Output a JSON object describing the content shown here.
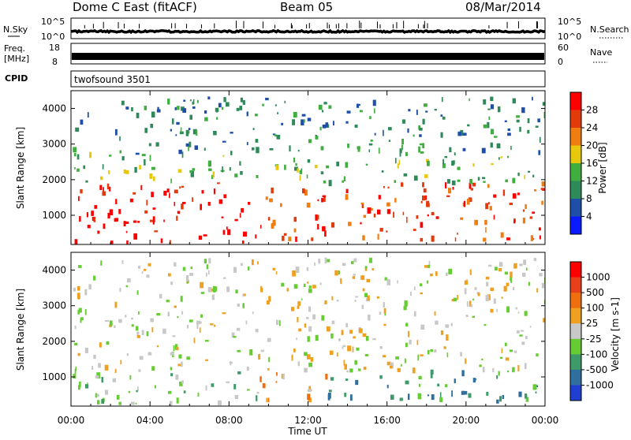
{
  "header": {
    "station": "Dome C East (fitACF)",
    "beam": "Beam 05",
    "date": "08/Mar/2014"
  },
  "noise_panel": {
    "left_label": "N.Sky",
    "right_label": "N.Search",
    "y_ticks_left": [
      "10^5",
      "10^0"
    ],
    "y_ticks_right": [
      "10^5",
      "10^0"
    ],
    "level_log": 0.35
  },
  "freq_panel": {
    "left_label": "Freq.",
    "left_unit": "[MHz]",
    "left_tick_top": "18",
    "left_tick_bottom": "8",
    "right_label": "Nave",
    "right_tick_top": "60",
    "right_tick_bottom": "0",
    "level": 0.55
  },
  "cpid_panel": {
    "label": "CPID",
    "text": "twofsound 3501"
  },
  "chart_data": [
    {
      "type": "heatmap",
      "parameter": "Power",
      "ylabel": "Slant Range [km]",
      "ylim": [
        180,
        4500
      ],
      "y_ticks": [
        1000,
        2000,
        3000,
        4000
      ],
      "xlim": [
        0,
        24
      ],
      "colorbar_label": "Power [dB]",
      "colorbar_ticks": [
        "4",
        "8",
        "12",
        "16",
        "20",
        "24",
        "28"
      ],
      "colorbar_colors": [
        "#0a1cff",
        "#1e4fa8",
        "#2f8a59",
        "#3fae3f",
        "#e8c80c",
        "#ef7d10",
        "#e33a0c",
        "#ff0000"
      ],
      "regions": [
        {
          "t0": 0.0,
          "t1": 9.0,
          "r0": 220,
          "r1": 1900,
          "level": 7
        },
        {
          "t0": 9.2,
          "t1": 12.5,
          "r0": 300,
          "r1": 1700,
          "level": 6
        },
        {
          "t0": 12.5,
          "t1": 24.0,
          "r0": 300,
          "r1": 1900,
          "level": 6
        },
        {
          "t0": 0.0,
          "t1": 24.0,
          "r0": 1900,
          "r1": 2700,
          "level": 3
        },
        {
          "t0": 0.0,
          "t1": 24.0,
          "r0": 2700,
          "r1": 4300,
          "level": 2
        }
      ]
    },
    {
      "type": "heatmap",
      "parameter": "Velocity",
      "ylabel": "Slant Range [km]",
      "ylim": [
        180,
        4500
      ],
      "y_ticks": [
        1000,
        2000,
        3000,
        4000
      ],
      "xlim": [
        0,
        24
      ],
      "xlabel": "Time UT",
      "x_ticks": [
        "00:00",
        "04:00",
        "08:00",
        "12:00",
        "16:00",
        "20:00",
        "00:00"
      ],
      "colorbar_label": "Velocity [m s-1]",
      "colorbar_ticks": [
        "1000",
        "500",
        "100",
        "25",
        "-25",
        "-100",
        "-500",
        "-1000"
      ],
      "colorbar_colors": [
        "#1f3fd0",
        "#2f6f9f",
        "#3f9a6a",
        "#66cc33",
        "#c8c8c8",
        "#f0a020",
        "#ef6f10",
        "#e8401a",
        "#ff0000"
      ],
      "regions": [
        {
          "t0": 0.0,
          "t1": 9.5,
          "r0": 250,
          "r1": 1150,
          "level": 3
        },
        {
          "t0": 0.0,
          "t1": 24.0,
          "r0": 1150,
          "r1": 2000,
          "level": 4
        },
        {
          "t0": 9.5,
          "t1": 13.0,
          "r0": 300,
          "r1": 1100,
          "level": 5
        },
        {
          "t0": 13.0,
          "t1": 24.0,
          "r0": 300,
          "r1": 1150,
          "level": 2
        },
        {
          "t0": 0.0,
          "t1": 24.0,
          "r0": 2000,
          "r1": 4300,
          "level": 4
        }
      ]
    }
  ]
}
